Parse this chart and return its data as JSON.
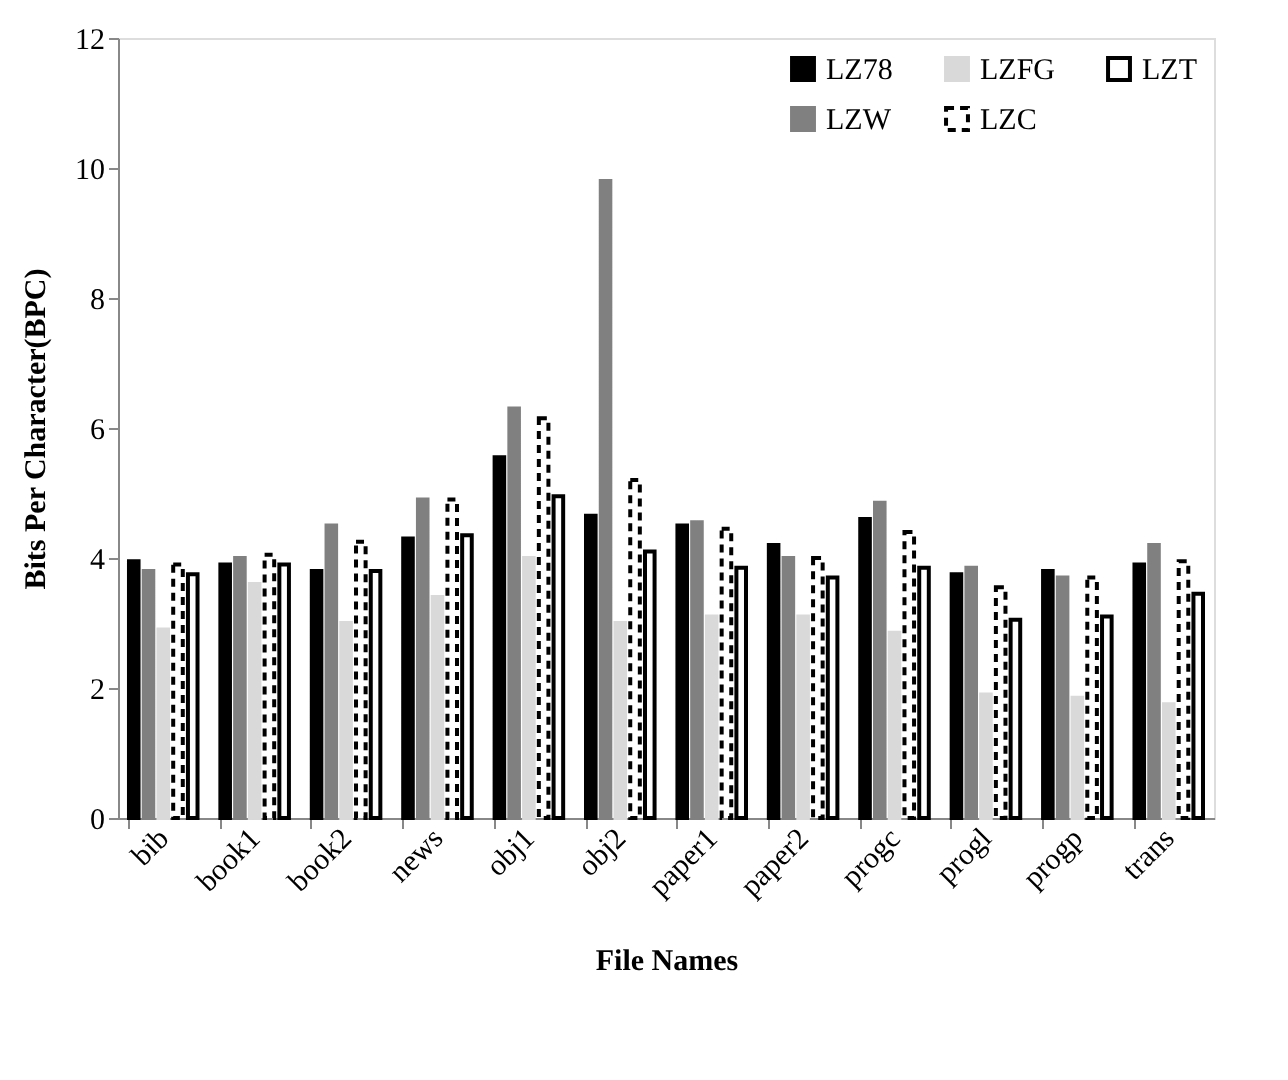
{
  "chart_data": {
    "type": "bar",
    "xlabel": "File Names",
    "ylabel": "Bits Per Character(BPC)",
    "categories": [
      "bib",
      "book1",
      "book2",
      "news",
      "obj1",
      "obj2",
      "paper1",
      "paper2",
      "progc",
      "progl",
      "progp",
      "trans"
    ],
    "series": [
      {
        "name": "LZ78",
        "color": "#000000",
        "values": [
          3.95,
          3.9,
          3.8,
          4.3,
          5.55,
          4.65,
          4.5,
          4.2,
          4.6,
          3.75,
          3.8,
          3.9
        ]
      },
      {
        "name": "LZW",
        "color": "#808080",
        "values": [
          3.8,
          4.0,
          4.5,
          4.9,
          6.3,
          9.8,
          4.55,
          4.0,
          4.85,
          3.85,
          3.7,
          4.2
        ]
      },
      {
        "name": "LZFG",
        "color": "#d9d9d9",
        "values": [
          2.9,
          3.6,
          3.0,
          3.4,
          4.0,
          3.0,
          3.1,
          3.1,
          2.85,
          1.9,
          1.85,
          1.75
        ]
      },
      {
        "name": "LZC",
        "color": "#ffffff",
        "line_style": "dashed",
        "values": [
          3.9,
          4.05,
          4.25,
          4.9,
          6.15,
          5.2,
          4.45,
          4.0,
          4.4,
          3.55,
          3.7,
          3.95
        ]
      },
      {
        "name": "LZT",
        "color": "#ffffff",
        "line_style": "solid",
        "values": [
          3.75,
          3.9,
          3.8,
          4.35,
          4.95,
          4.1,
          3.85,
          3.7,
          3.85,
          3.05,
          3.1,
          3.45
        ]
      }
    ],
    "ylim": [
      0,
      12
    ],
    "yticks": [
      0,
      2,
      4,
      6,
      8,
      10,
      12
    ],
    "grid": false,
    "legend": "top right"
  }
}
